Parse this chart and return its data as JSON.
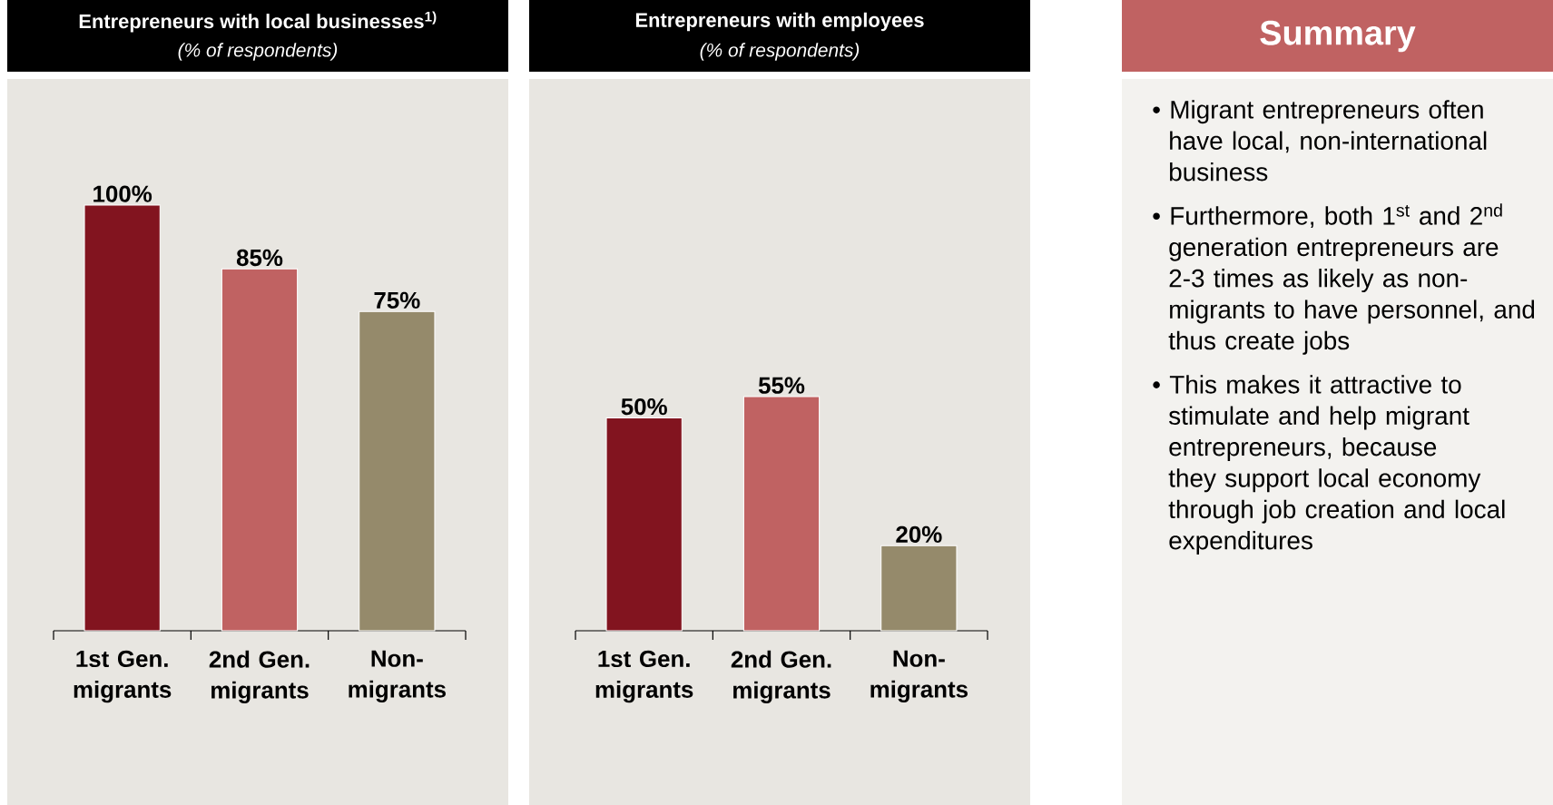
{
  "chart_data": [
    {
      "type": "bar",
      "title": "Entrepreneurs with local businesses$^{1)}$",
      "subtitle": "(% of respondents)",
      "categories": [
        "1st Gen. migrants",
        "2nd Gen. migrants",
        "Non-migrants"
      ],
      "values": [
        100,
        85,
        75
      ],
      "colors": [
        "#82141f",
        "#c06262",
        "#958a6b"
      ],
      "value_labels": [
        "100%",
        "85%",
        "75%"
      ]
    },
    {
      "type": "bar",
      "title": "Entrepreneurs with employees",
      "subtitle": "(% of respondents)",
      "categories": [
        "1st Gen. migrants",
        "2nd Gen. migrants",
        "Non-migrants"
      ],
      "values": [
        50,
        55,
        20
      ],
      "colors": [
        "#82141f",
        "#c06262",
        "#958a6b"
      ],
      "value_labels": [
        "50%",
        "55%",
        "20%"
      ]
    },
    {
      "type": "other",
      "title": "Summary",
      "annotations": [
        "• Migrant entrepreneurs often have local, non-international business",
        "• Furthermore, both 1$^{st}$ and 2$^{nd}$ generation entrepreneurs are 2-3 times as likely as non-migrants to have personnel, and thus create jobs",
        "• This makes it attractive to stimulate and help migrant entrepreneurs, because they support local economy through job creation and local expenditures"
      ]
    }
  ]
}
